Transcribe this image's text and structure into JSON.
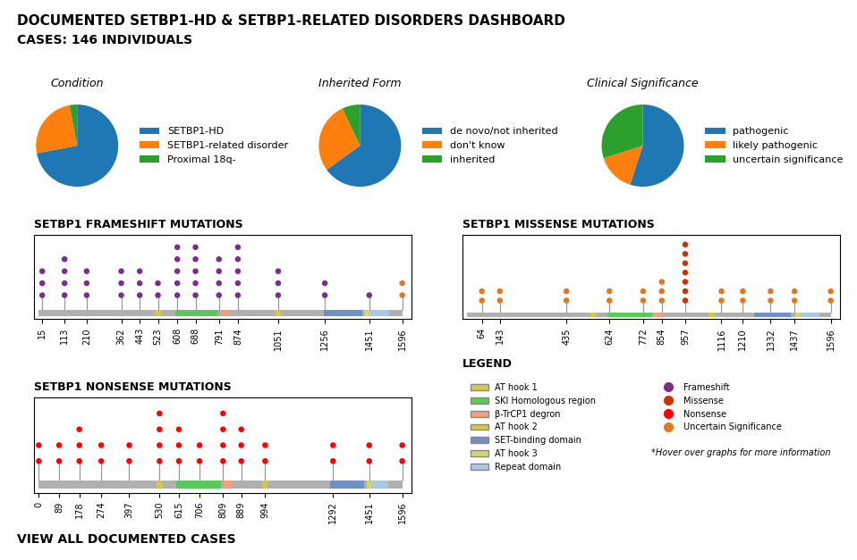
{
  "title": "DOCUMENTED SETBP1-HD & SETBP1-RELATED DISORDERS DASHBOARD",
  "subtitle": "CASES: 146 INDIVIDUALS",
  "chart_data": [
    {
      "type": "pie",
      "title": "Condition",
      "categories": [
        "SETBP1-HD",
        "SETBP1-related disorder",
        "Proximal 18q-"
      ],
      "values": [
        72,
        25,
        3
      ],
      "legend": "center left"
    },
    {
      "type": "pie",
      "title": "Inherited Form",
      "categories": [
        "de novo/not inherited",
        "don't know",
        "inherited"
      ],
      "values": [
        65,
        28,
        7
      ],
      "legend": "center left"
    },
    {
      "type": "pie",
      "title": "Clinical Significance",
      "categories": [
        "pathogenic",
        "likely pathogenic",
        "uncertain significance"
      ],
      "values": [
        55,
        15,
        30
      ],
      "legend": "center left"
    },
    {
      "type": "lollipop",
      "title": "SETBP1 FRAMESHIFT MUTATIONS",
      "x": [
        15,
        113,
        210,
        362,
        443,
        523,
        608,
        688,
        791,
        874,
        1051,
        1256,
        1451,
        1596
      ],
      "values": [
        3,
        4,
        3,
        3,
        3,
        2,
        5,
        5,
        4,
        5,
        3,
        2,
        1,
        2
      ],
      "colors": [
        "#7b2d8b",
        "#7b2d8b",
        "#7b2d8b",
        "#7b2d8b",
        "#7b2d8b",
        "#7b2d8b",
        "#7b2d8b",
        "#7b2d8b",
        "#7b2d8b",
        "#7b2d8b",
        "#7b2d8b",
        "#7b2d8b",
        "#7b2d8b",
        "#e07820"
      ],
      "xlim": [
        -20,
        1636
      ],
      "xticks": [
        15,
        113,
        210,
        362,
        443,
        523,
        608,
        688,
        791,
        874,
        1051,
        1256,
        1451,
        1596
      ],
      "ylim": [
        -1,
        6
      ],
      "tick_labels": "x",
      "protein_length": 1596,
      "protein_color": "#b0b0b0",
      "domains": [
        {
          "start": 510,
          "end": 540,
          "color": "#d4c84a"
        },
        {
          "start": 600,
          "end": 790,
          "color": "#5cc85c"
        },
        {
          "start": 800,
          "end": 840,
          "color": "#f0a080"
        },
        {
          "start": 1040,
          "end": 1065,
          "color": "#d4c84a"
        },
        {
          "start": 1250,
          "end": 1420,
          "color": "#7090c8"
        },
        {
          "start": 1430,
          "end": 1455,
          "color": "#d4d470"
        },
        {
          "start": 1455,
          "end": 1540,
          "color": "#a8c8e8"
        }
      ]
    },
    {
      "type": "lollipop",
      "title": "SETBP1 MISSENSE MUTATIONS",
      "x": [
        64,
        143,
        435,
        624,
        772,
        854,
        957,
        1116,
        1210,
        1332,
        1437,
        1596
      ],
      "values": [
        2,
        2,
        2,
        2,
        2,
        3,
        7,
        2,
        2,
        2,
        2,
        2
      ],
      "colors": [
        "#e07820",
        "#e07820",
        "#e07820",
        "#e07820",
        "#e07820",
        "#e07820",
        "#cc3300",
        "#e07820",
        "#e07820",
        "#e07820",
        "#e07820",
        "#e07820"
      ],
      "xlim": [
        -20,
        1636
      ],
      "xticks": [
        64,
        143,
        435,
        624,
        772,
        854,
        957,
        1116,
        1210,
        1332,
        1437,
        1596
      ],
      "ylim": [
        -1,
        8
      ],
      "tick_labels": "x",
      "protein_length": 1596,
      "protein_color": "#b0b0b0",
      "domains": [
        {
          "start": 540,
          "end": 565,
          "color": "#d4c84a"
        },
        {
          "start": 615,
          "end": 810,
          "color": "#5cc85c"
        },
        {
          "start": 820,
          "end": 858,
          "color": "#f0a080"
        },
        {
          "start": 1060,
          "end": 1085,
          "color": "#d4c84a"
        },
        {
          "start": 1260,
          "end": 1420,
          "color": "#7090c8"
        },
        {
          "start": 1440,
          "end": 1462,
          "color": "#d4d470"
        },
        {
          "start": 1462,
          "end": 1545,
          "color": "#a8c8e8"
        }
      ]
    },
    {
      "type": "lollipop",
      "title": "SETBP1 NONSENSE MUTATIONS",
      "x": [
        0,
        89,
        178,
        274,
        397,
        530,
        615,
        706,
        809,
        889,
        994,
        1292,
        1451,
        1596
      ],
      "values": [
        2,
        2,
        3,
        2,
        2,
        4,
        3,
        2,
        4,
        3,
        2,
        2,
        2,
        2
      ],
      "colors": [
        "#ff0000",
        "#ff0000",
        "#ff0000",
        "#ff0000",
        "#ff0000",
        "#ff0000",
        "#ff0000",
        "#ff0000",
        "#ff0000",
        "#ff0000",
        "#ff0000",
        "#ff0000",
        "#ff0000",
        "#ff0000"
      ],
      "xlim": [
        -20,
        1636
      ],
      "xticks": [
        0,
        89,
        178,
        274,
        397,
        530,
        615,
        706,
        809,
        889,
        994,
        1292,
        1451,
        1596
      ],
      "ylim": [
        -1,
        5
      ],
      "tick_labels": "x",
      "protein_length": 1596,
      "protein_color": "#b0b0b0",
      "domains": [
        {
          "start": 518,
          "end": 543,
          "color": "#d4c84a"
        },
        {
          "start": 605,
          "end": 800,
          "color": "#5cc85c"
        },
        {
          "start": 810,
          "end": 848,
          "color": "#f0a080"
        },
        {
          "start": 982,
          "end": 1005,
          "color": "#d4c84a"
        },
        {
          "start": 1280,
          "end": 1430,
          "color": "#7090c8"
        },
        {
          "start": 1440,
          "end": 1460,
          "color": "#d4d470"
        },
        {
          "start": 1460,
          "end": 1535,
          "color": "#a8c8e8"
        }
      ]
    }
  ],
  "legend_title": "LEGEND",
  "legend_domains": [
    {
      "label": "AT hook 1",
      "color": "#d4c84a"
    },
    {
      "label": "SKI Homologous region",
      "color": "#5cc85c"
    },
    {
      "label": "β-TrCP1 degron",
      "color": "#f0a080"
    },
    {
      "label": "AT hook 2",
      "color": "#d4c84a"
    },
    {
      "label": "SET-binding domain",
      "color": "#7090c8"
    },
    {
      "label": "AT hook 3",
      "color": "#d4d470"
    },
    {
      "label": "Repeat domain",
      "color": "#a8c8e8"
    }
  ],
  "legend_mutations": [
    {
      "label": "Frameshift",
      "color": "#7b2d8b"
    },
    {
      "label": "Missense",
      "color": "#cc3300"
    },
    {
      "label": "Nonsense",
      "color": "#ff0000"
    },
    {
      "label": "Uncertain Significance",
      "color": "#e07820"
    }
  ],
  "annotations": [
    "*Hover over graphs for more information",
    "VIEW ALL DOCUMENTED CASES"
  ]
}
